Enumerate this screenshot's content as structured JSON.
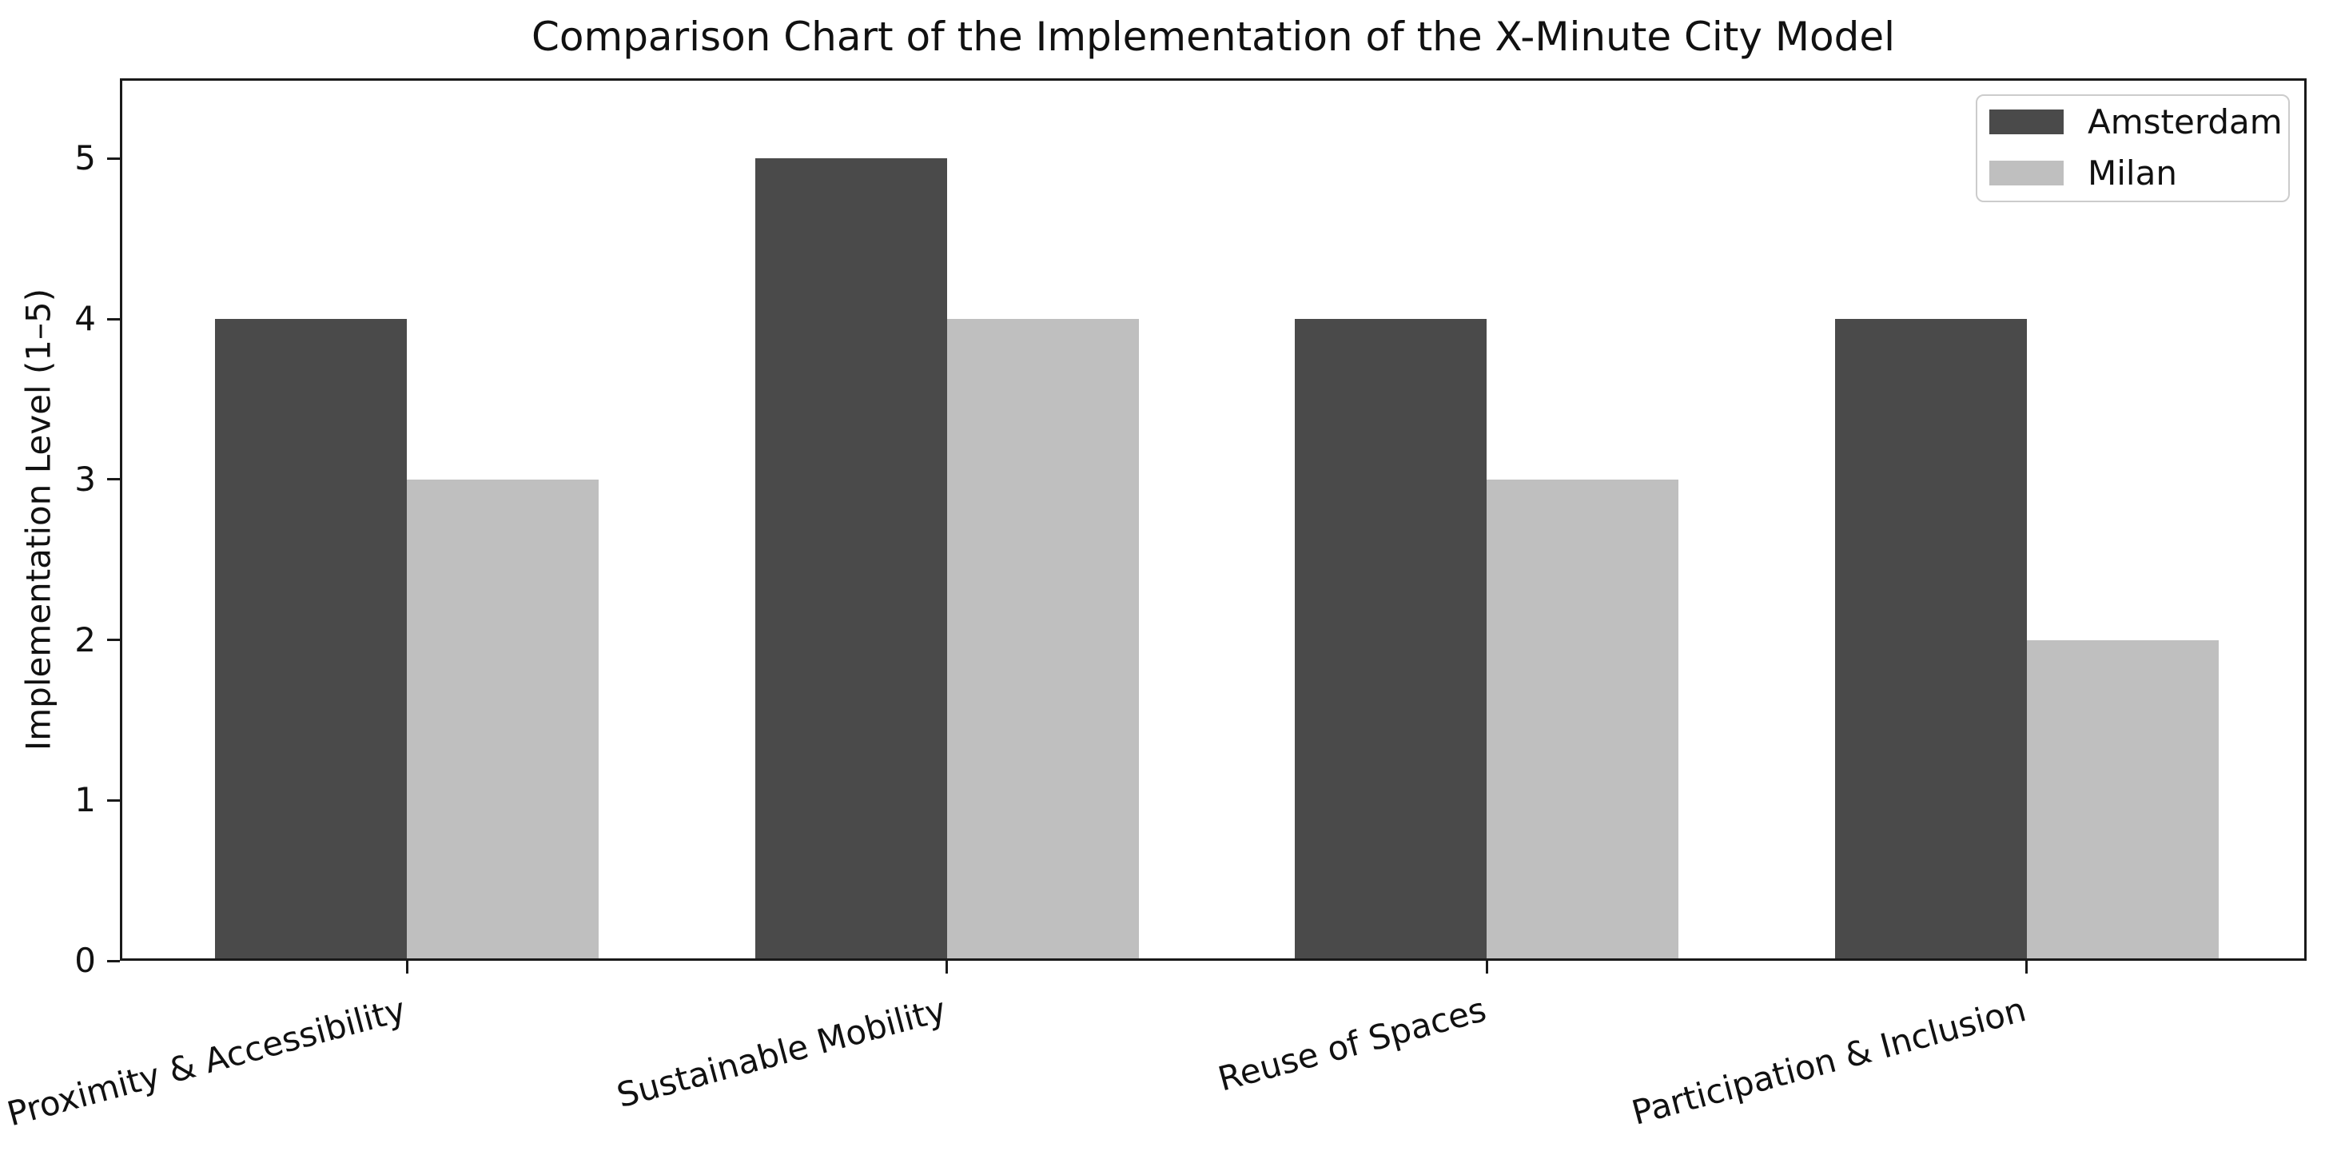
{
  "chart_data": {
    "type": "bar",
    "title": "Comparison Chart of the Implementation of the X-Minute City Model",
    "xlabel": "",
    "ylabel": "Implementation Level (1–5)",
    "categories": [
      "Proximity & Accessibility",
      "Sustainable Mobility",
      "Reuse of Spaces",
      "Participation & Inclusion"
    ],
    "series": [
      {
        "name": "Amsterdam",
        "color": "#4a4a4a",
        "values": [
          4,
          5,
          4,
          4
        ]
      },
      {
        "name": "Milan",
        "color": "#bfbfbf",
        "values": [
          3,
          4,
          3,
          2
        ]
      }
    ],
    "yticks": [
      "0",
      "1",
      "2",
      "3",
      "4",
      "5"
    ],
    "ylim": [
      0,
      5.5
    ],
    "grid": false,
    "legend_position": "upper right",
    "background_color": "#ffffff",
    "spine_color": "#1a1a1a"
  }
}
